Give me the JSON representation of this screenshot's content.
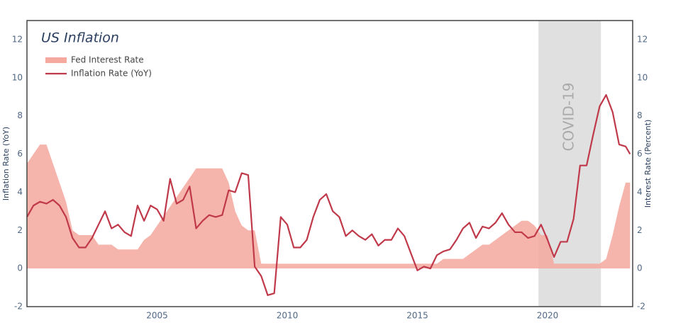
{
  "chart_data": {
    "type": "line",
    "title": "US Inflation",
    "y_label": "Inflation Rate (YoY)",
    "y2_label": "Interest Rate (Percent)",
    "x": [
      2000,
      2000.25,
      2000.5,
      2000.75,
      2001,
      2001.25,
      2001.5,
      2001.75,
      2002,
      2002.25,
      2002.5,
      2002.75,
      2003,
      2003.25,
      2003.5,
      2003.75,
      2004,
      2004.25,
      2004.5,
      2004.75,
      2005,
      2005.25,
      2005.5,
      2005.75,
      2006,
      2006.25,
      2006.5,
      2006.75,
      2007,
      2007.25,
      2007.5,
      2007.75,
      2008,
      2008.25,
      2008.5,
      2008.75,
      2009,
      2009.25,
      2009.5,
      2009.75,
      2010,
      2010.25,
      2010.5,
      2010.75,
      2011,
      2011.25,
      2011.5,
      2011.75,
      2012,
      2012.25,
      2012.5,
      2012.75,
      2013,
      2013.25,
      2013.5,
      2013.75,
      2014,
      2014.25,
      2014.5,
      2014.75,
      2015,
      2015.25,
      2015.5,
      2015.75,
      2016,
      2016.25,
      2016.5,
      2016.75,
      2017,
      2017.25,
      2017.5,
      2017.75,
      2018,
      2018.25,
      2018.5,
      2018.75,
      2019,
      2019.25,
      2019.5,
      2019.75,
      2020,
      2020.25,
      2020.5,
      2020.75,
      2021,
      2021.25,
      2021.5,
      2021.75,
      2022,
      2022.25,
      2022.5,
      2022.75,
      2023,
      2023.17
    ],
    "series": [
      {
        "name": "Fed Interest Rate",
        "kind": "area",
        "axis": "y2",
        "color": "#f5a89d",
        "values": [
          5.5,
          6.0,
          6.5,
          6.5,
          5.5,
          4.5,
          3.5,
          2.0,
          1.75,
          1.75,
          1.75,
          1.25,
          1.25,
          1.25,
          1.0,
          1.0,
          1.0,
          1.0,
          1.5,
          1.75,
          2.25,
          2.75,
          3.25,
          3.75,
          4.25,
          4.75,
          5.25,
          5.25,
          5.25,
          5.25,
          5.25,
          4.5,
          3.0,
          2.25,
          2.0,
          2.0,
          0.25,
          0.25,
          0.25,
          0.25,
          0.25,
          0.25,
          0.25,
          0.25,
          0.25,
          0.25,
          0.25,
          0.25,
          0.25,
          0.25,
          0.25,
          0.25,
          0.25,
          0.25,
          0.25,
          0.25,
          0.25,
          0.25,
          0.25,
          0.25,
          0.25,
          0.25,
          0.25,
          0.25,
          0.5,
          0.5,
          0.5,
          0.5,
          0.75,
          1.0,
          1.25,
          1.25,
          1.5,
          1.75,
          2.0,
          2.25,
          2.5,
          2.5,
          2.25,
          1.75,
          1.75,
          0.25,
          0.25,
          0.25,
          0.25,
          0.25,
          0.25,
          0.25,
          0.25,
          0.5,
          1.75,
          3.25,
          4.5,
          4.5
        ]
      },
      {
        "name": "Inflation Rate (YoY)",
        "kind": "line",
        "color": "#c0394a",
        "values": [
          2.7,
          3.3,
          3.5,
          3.4,
          3.6,
          3.3,
          2.7,
          1.6,
          1.1,
          1.1,
          1.6,
          2.3,
          3.0,
          2.1,
          2.3,
          1.9,
          1.7,
          3.3,
          2.5,
          3.3,
          3.1,
          2.5,
          4.7,
          3.4,
          3.6,
          4.3,
          2.1,
          2.5,
          2.8,
          2.7,
          2.8,
          4.1,
          4.0,
          5.0,
          4.9,
          0.1,
          -0.4,
          -1.4,
          -1.3,
          2.7,
          2.3,
          1.1,
          1.1,
          1.5,
          2.7,
          3.6,
          3.9,
          3.0,
          2.7,
          1.7,
          2.0,
          1.7,
          1.5,
          1.8,
          1.2,
          1.5,
          1.5,
          2.1,
          1.7,
          0.8,
          -0.1,
          0.1,
          0.0,
          0.7,
          0.9,
          1.0,
          1.5,
          2.1,
          2.4,
          1.6,
          2.2,
          2.1,
          2.4,
          2.9,
          2.3,
          1.9,
          1.9,
          1.6,
          1.7,
          2.3,
          1.5,
          0.6,
          1.4,
          1.4,
          2.6,
          5.4,
          5.4,
          7.0,
          8.5,
          9.1,
          8.2,
          6.5,
          6.4,
          6.0
        ]
      }
    ],
    "annotations": [
      {
        "text": "COVID-19",
        "x0": 2019.65,
        "x1": 2022.05
      }
    ],
    "xlim": [
      2000,
      2023.27
    ],
    "xticks": [
      2005,
      2010,
      2015,
      2020
    ],
    "ylim": [
      -2,
      13
    ],
    "yticks": [
      -2,
      0,
      2,
      4,
      6,
      8,
      10,
      12
    ],
    "y2lim": [
      -2,
      13
    ],
    "y2ticks": [
      -2,
      0,
      2,
      4,
      6,
      8,
      10,
      12
    ],
    "grid": false,
    "legend": "top-left"
  }
}
